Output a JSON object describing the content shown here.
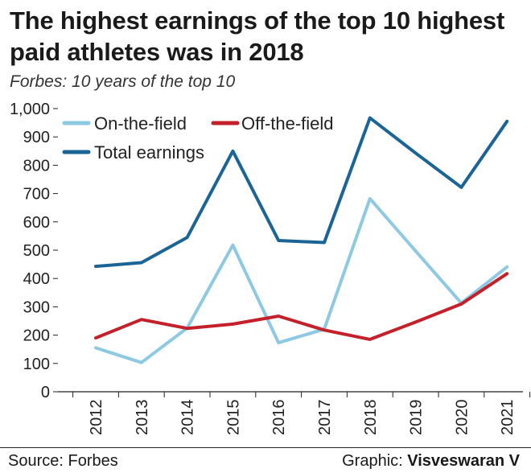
{
  "title": "The highest earnings of the top 10 highest paid athletes was in 2018",
  "subtitle": "Forbes: 10 years of the top 10",
  "source": "Source: Forbes",
  "credit_label": "Graphic:",
  "credit_name": "Visveswaran V",
  "chart_data": {
    "type": "line",
    "x": [
      "2012",
      "2013",
      "2014",
      "2015",
      "2016",
      "2017",
      "2018",
      "2019",
      "2020",
      "2021"
    ],
    "ylim": [
      0,
      1000
    ],
    "yticks": [
      "0",
      "100",
      "200",
      "300",
      "400",
      "500",
      "600",
      "700",
      "800",
      "900",
      "1,000"
    ],
    "ytick_values": [
      0,
      100,
      200,
      300,
      400,
      500,
      600,
      700,
      800,
      900,
      1000
    ],
    "grid": false,
    "legend_position": "top-left",
    "series": [
      {
        "name": "On-the-field",
        "color": "#8ec9e4",
        "values": [
          155,
          103,
          225,
          518,
          173,
          221,
          682,
          497,
          313,
          441
        ]
      },
      {
        "name": "Off-the-field",
        "color": "#c4202a",
        "values": [
          190,
          255,
          224,
          239,
          267,
          218,
          185,
          246,
          310,
          417
        ]
      },
      {
        "name": "Total earnings",
        "color": "#1b6496",
        "values": [
          443,
          456,
          545,
          850,
          534,
          527,
          967,
          843,
          722,
          955
        ]
      }
    ]
  }
}
